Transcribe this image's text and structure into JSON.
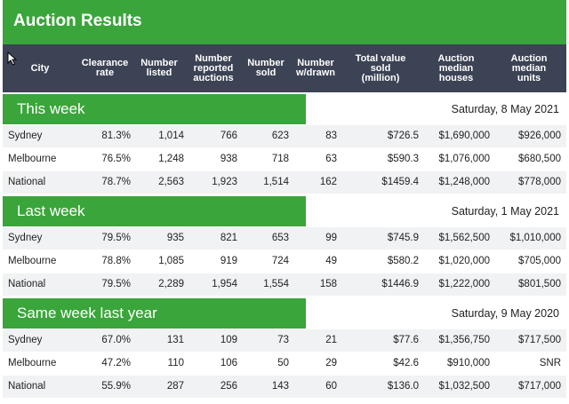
{
  "title": "Auction Results",
  "columns": [
    "City",
    "Clearance\nrate",
    "Number\nlisted",
    "Number\nreported\nauctions",
    "Number\nsold",
    "Number\nw/drawn",
    "Total value\nsold\n(million)",
    "Auction\nmedian\nhouses",
    "Auction\nmedian\nunits"
  ],
  "sections": [
    {
      "label": "This week",
      "date": "Saturday, 8 May 2021",
      "rows": [
        [
          "Sydney",
          "81.3%",
          "1,014",
          "766",
          "623",
          "83",
          "$726.5",
          "$1,690,000",
          "$926,000"
        ],
        [
          "Melbourne",
          "76.5%",
          "1,248",
          "938",
          "718",
          "63",
          "$590.3",
          "$1,076,000",
          "$680,500"
        ],
        [
          "National",
          "78.7%",
          "2,563",
          "1,923",
          "1,514",
          "162",
          "$1459.4",
          "$1,248,000",
          "$778,000"
        ]
      ]
    },
    {
      "label": "Last week",
      "date": "Saturday, 1 May 2021",
      "rows": [
        [
          "Sydney",
          "79.5%",
          "935",
          "821",
          "653",
          "99",
          "$745.9",
          "$1,562,500",
          "$1,010,000"
        ],
        [
          "Melbourne",
          "78.8%",
          "1,085",
          "919",
          "724",
          "49",
          "$580.2",
          "$1,020,000",
          "$705,000"
        ],
        [
          "National",
          "79.5%",
          "2,289",
          "1,954",
          "1,554",
          "158",
          "$1446.9",
          "$1,222,000",
          "$801,500"
        ]
      ]
    },
    {
      "label": "Same week last year",
      "date": "Saturday, 9 May 2020",
      "rows": [
        [
          "Sydney",
          "67.0%",
          "131",
          "109",
          "73",
          "21",
          "$77.6",
          "$1,356,750",
          "$717,500"
        ],
        [
          "Melbourne",
          "47.2%",
          "110",
          "106",
          "50",
          "29",
          "$42.6",
          "$910,000",
          "SNR"
        ],
        [
          "National",
          "55.9%",
          "287",
          "256",
          "143",
          "60",
          "$136.0",
          "$1,032,500",
          "$717,000"
        ]
      ]
    }
  ],
  "colors": {
    "green": "#3aa53a",
    "header": "#3c4354",
    "row_shade": "#f1f2f4"
  }
}
